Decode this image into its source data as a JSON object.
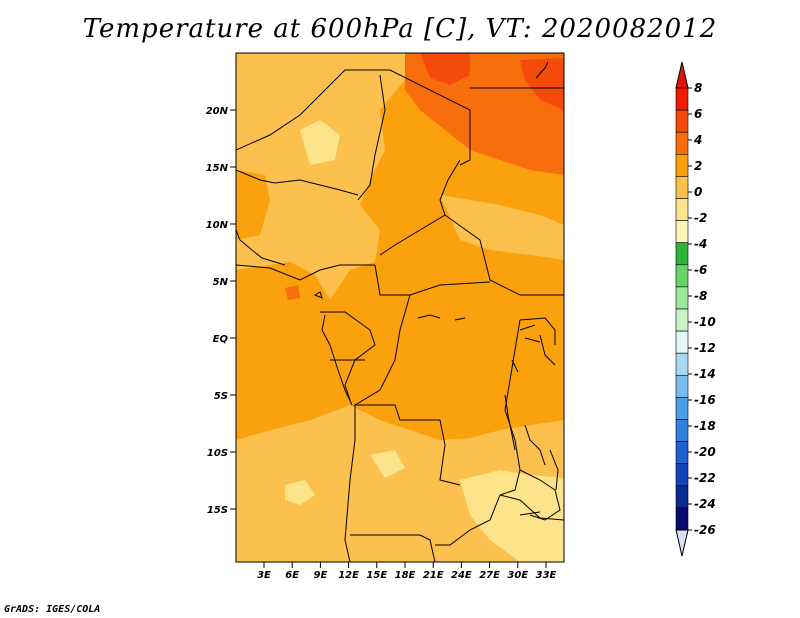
{
  "title": "Temperature at 600hPa [C], VT: 2020082012",
  "credit": "GrADS: IGES/COLA",
  "map": {
    "y_ticks": [
      "20N",
      "15N",
      "10N",
      "5N",
      "EQ",
      "5S",
      "10S",
      "15S"
    ],
    "x_ticks": [
      "3E",
      "6E",
      "9E",
      "12E",
      "15E",
      "18E",
      "21E",
      "24E",
      "27E",
      "30E",
      "33E"
    ],
    "fill_colors": {
      "t0_2": "#fbc04e",
      "t2_4": "#fba10e",
      "t4_6": "#f86e0c",
      "t6_8": "#f44a0a",
      "tm2_0": "#fde48a"
    }
  },
  "colorbar": {
    "labels": [
      "8",
      "6",
      "4",
      "2",
      "0",
      "-2",
      "-4",
      "-6",
      "-8",
      "-10",
      "-12",
      "-14",
      "-16",
      "-18",
      "-20",
      "-22",
      "-24",
      "-26"
    ],
    "colors": [
      "#f01a06",
      "#f44a0a",
      "#f86e0c",
      "#fba10e",
      "#fbc04e",
      "#fde48a",
      "#fdf7b8",
      "#2fb43a",
      "#66d466",
      "#9de89a",
      "#c8f2c8",
      "#e6f7f7",
      "#a8d8f5",
      "#7dbcf0",
      "#4f9ee8",
      "#3380e0",
      "#1f5fd0",
      "#1444b8",
      "#0b2a90",
      "#0a0a6e"
    ],
    "top_arrow_color": "#e8140a",
    "bottom_arrow_color": "#dcdcf6"
  }
}
